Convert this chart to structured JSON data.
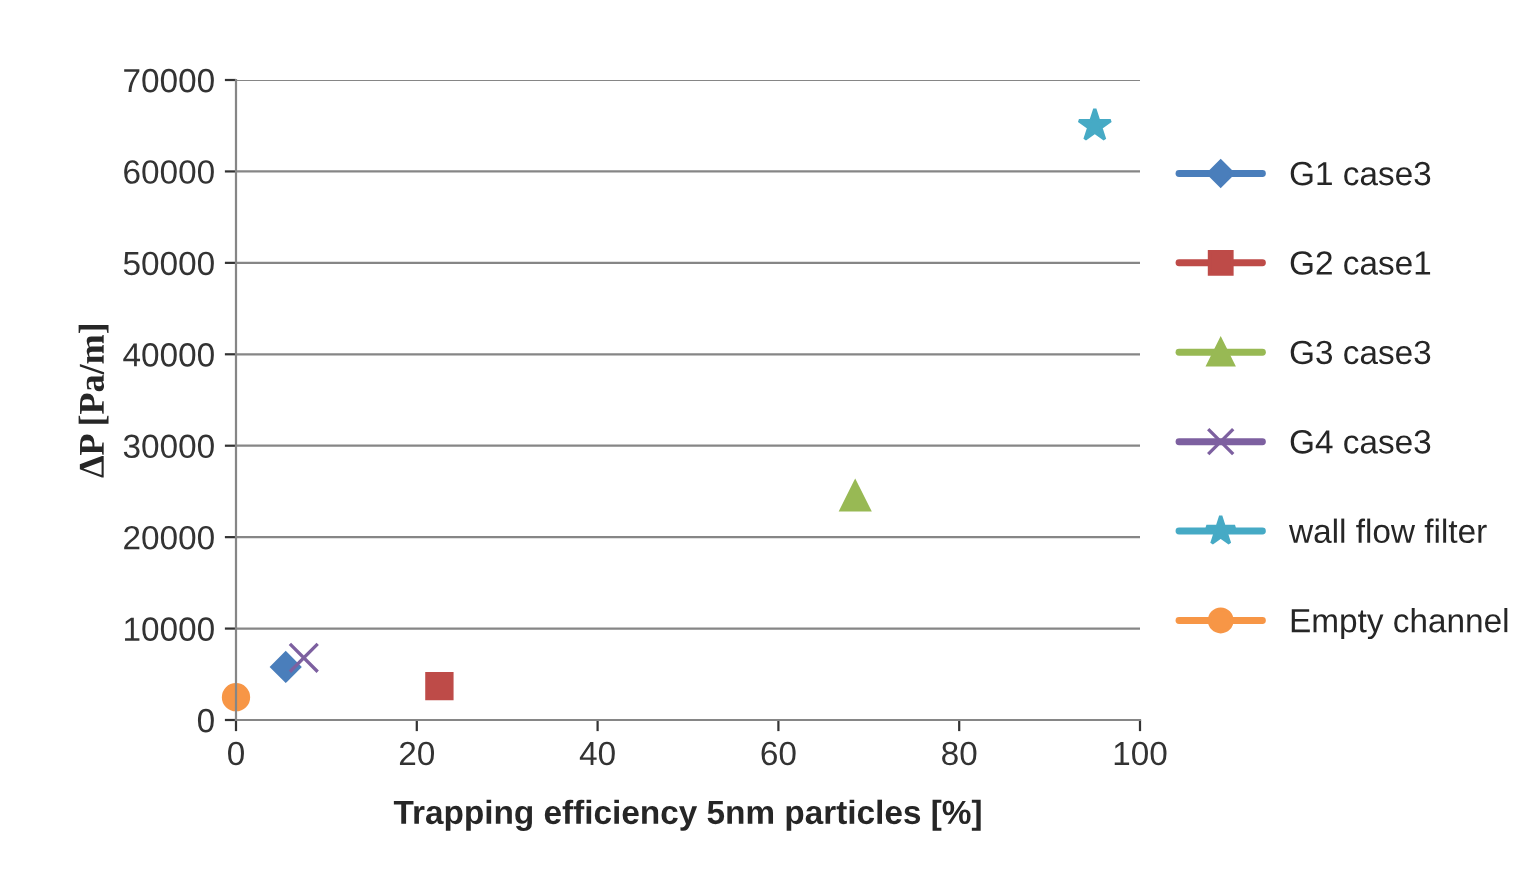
{
  "chart_data": {
    "type": "scatter",
    "xlabel": "Trapping efficiency 5nm particles [%]",
    "ylabel": "∆P [Pa/m]",
    "xlim": [
      0,
      100
    ],
    "xticks": [
      0,
      20,
      40,
      60,
      80,
      100
    ],
    "ylim": [
      0,
      70000
    ],
    "yticks": [
      0,
      10000,
      20000,
      30000,
      40000,
      50000,
      60000,
      70000
    ],
    "grid": "y",
    "legend": "right",
    "series": [
      {
        "name": "G1 case3",
        "color": "#4a7ebb",
        "marker": "diamond",
        "x": [
          5.5
        ],
        "values": [
          5800
        ]
      },
      {
        "name": "G2 case1",
        "color": "#be4b48",
        "marker": "square",
        "x": [
          22.5
        ],
        "values": [
          3700
        ]
      },
      {
        "name": "G3 case3",
        "color": "#98b954",
        "marker": "triangle",
        "x": [
          68.5
        ],
        "values": [
          24500
        ]
      },
      {
        "name": "G4 case3",
        "color": "#7d60a0",
        "marker": "cross",
        "x": [
          7.5
        ],
        "values": [
          6800
        ]
      },
      {
        "name": "wall flow filter",
        "color": "#46aac5",
        "marker": "star",
        "x": [
          95
        ],
        "values": [
          65000
        ]
      },
      {
        "name": "Empty channel",
        "color": "#f79646",
        "marker": "circle",
        "x": [
          0
        ],
        "values": [
          2500
        ]
      }
    ]
  }
}
